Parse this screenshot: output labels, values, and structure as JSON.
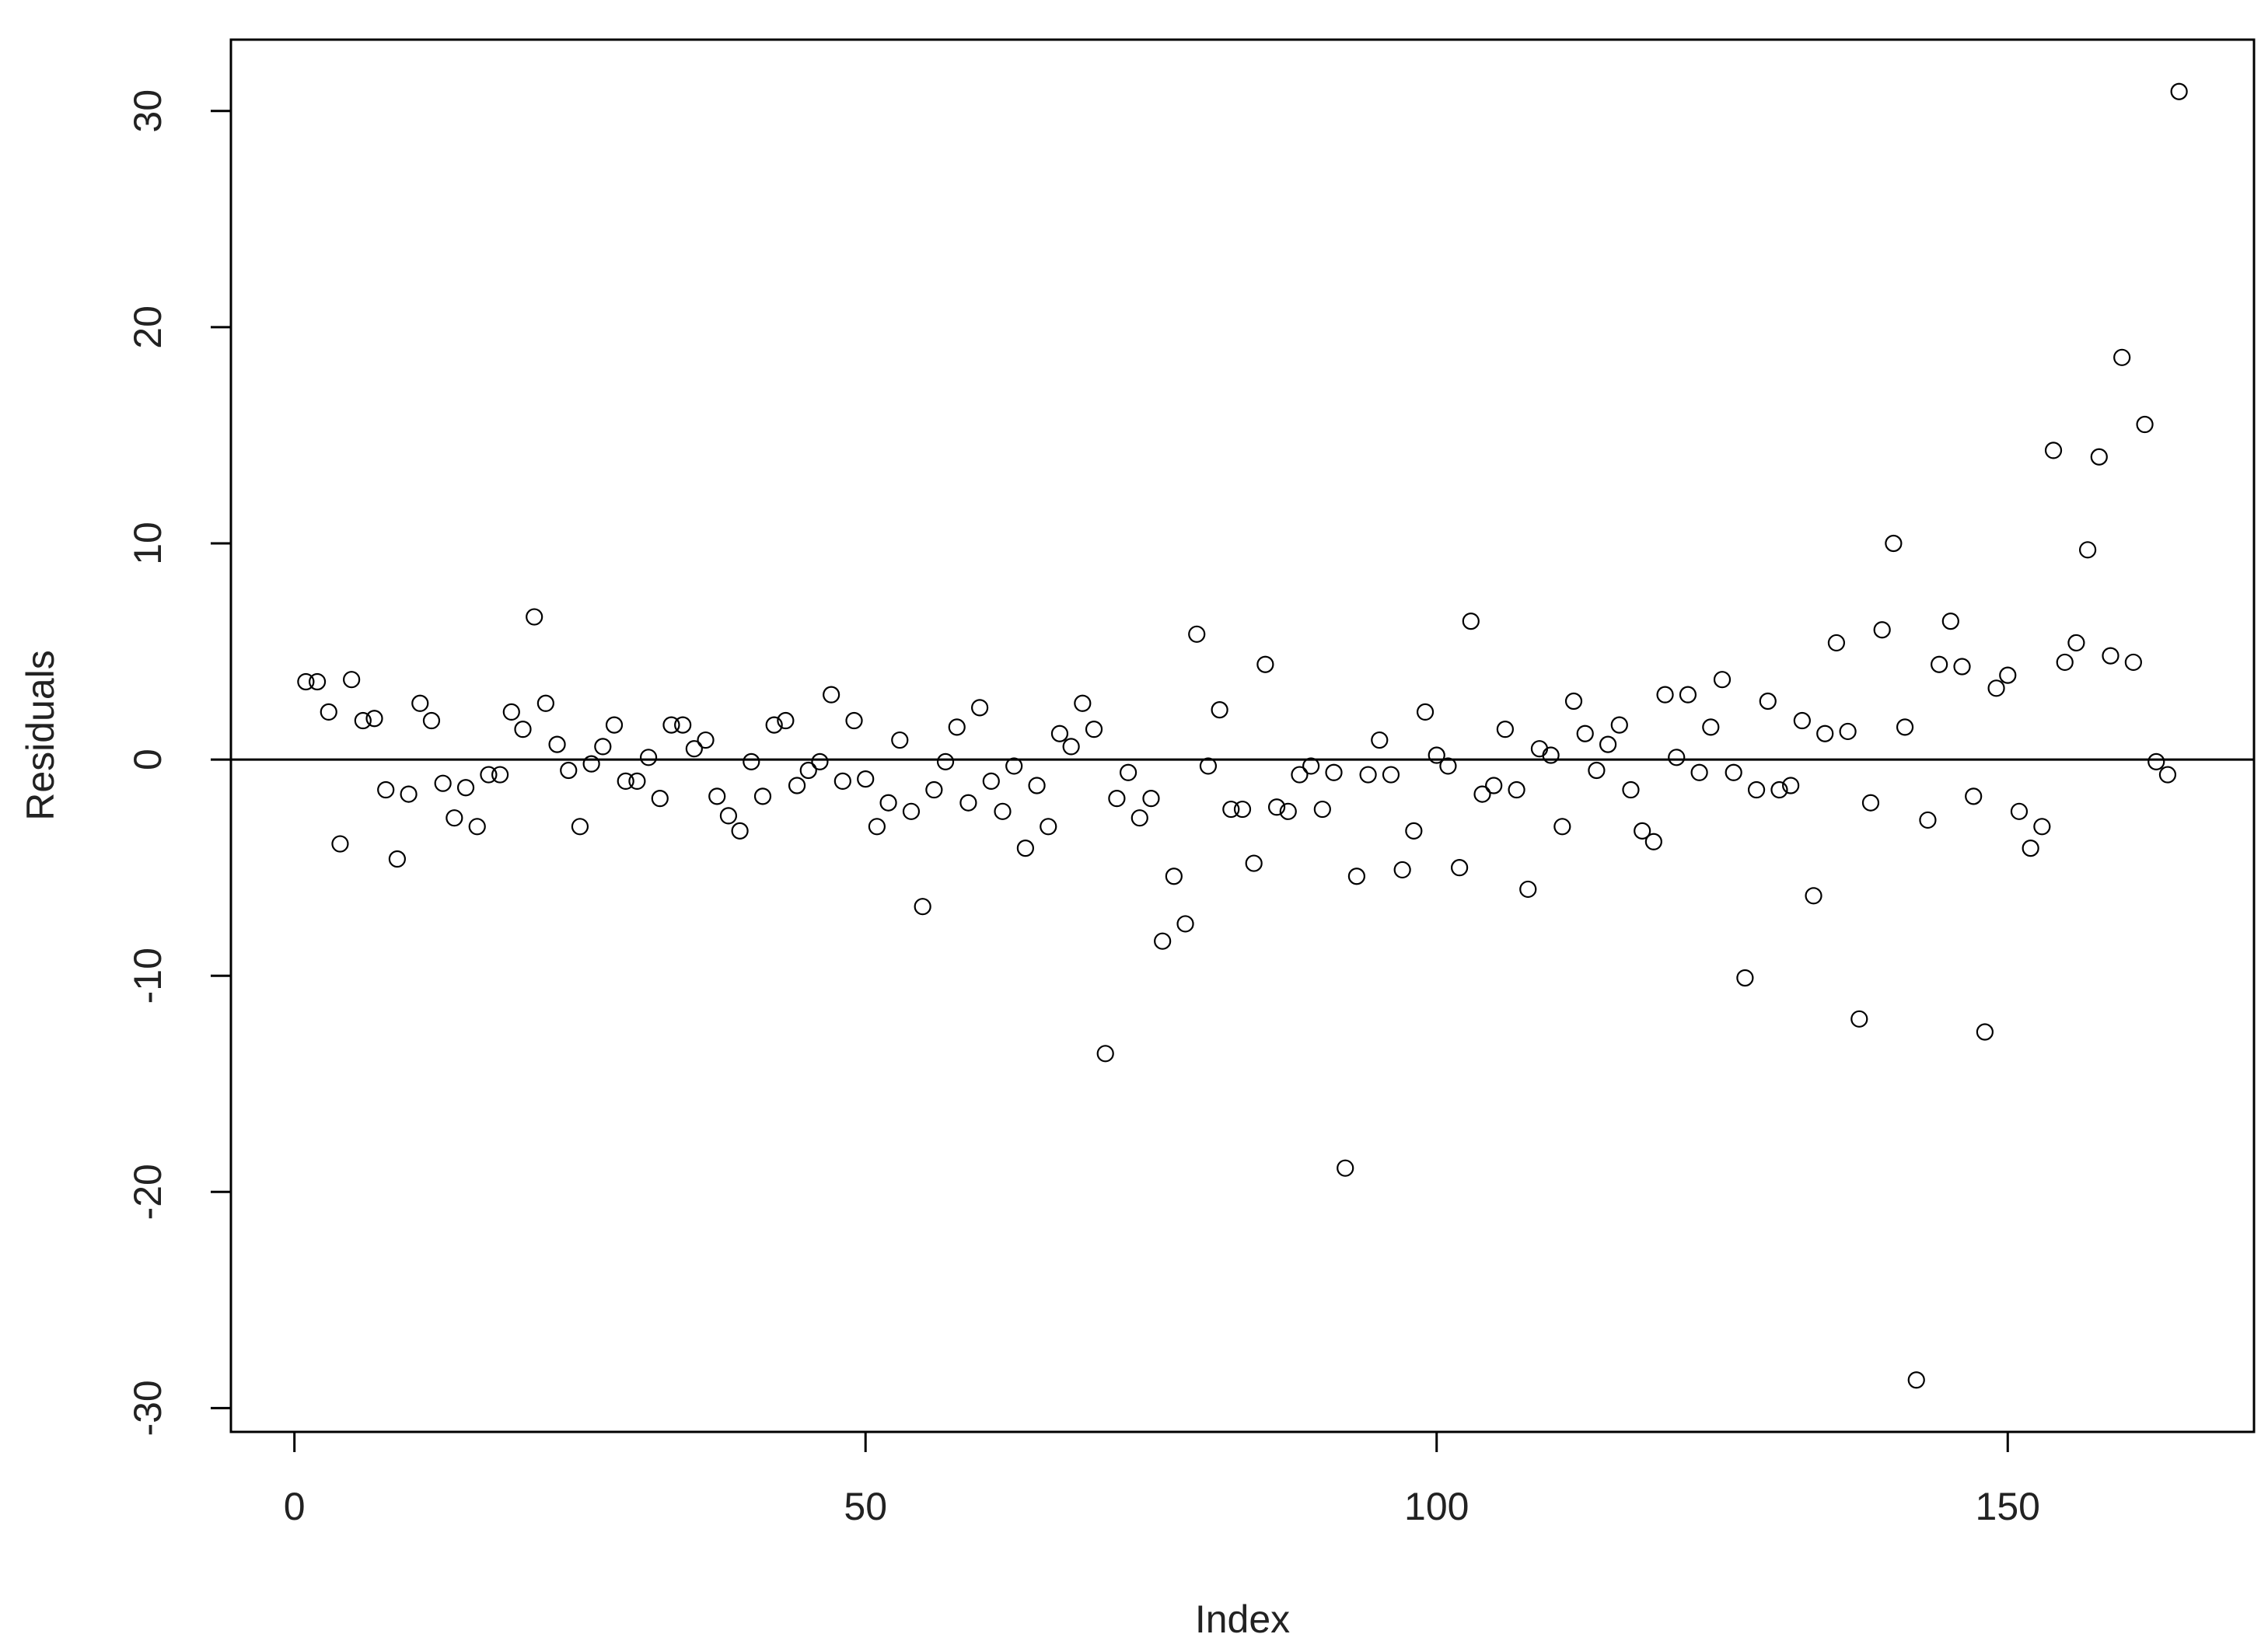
{
  "chart_data": {
    "type": "scatter",
    "xlabel": "Index",
    "ylabel": "Residuals",
    "x": [
      1,
      2,
      3,
      4,
      5,
      6,
      7,
      8,
      9,
      10,
      11,
      12,
      13,
      14,
      15,
      16,
      17,
      18,
      19,
      20,
      21,
      22,
      23,
      24,
      25,
      26,
      27,
      28,
      29,
      30,
      31,
      32,
      33,
      34,
      35,
      36,
      37,
      38,
      39,
      40,
      41,
      42,
      43,
      44,
      45,
      46,
      47,
      48,
      49,
      50,
      51,
      52,
      53,
      54,
      55,
      56,
      57,
      58,
      59,
      60,
      61,
      62,
      63,
      64,
      65,
      66,
      67,
      68,
      69,
      70,
      71,
      72,
      73,
      74,
      75,
      76,
      77,
      78,
      79,
      80,
      81,
      82,
      83,
      84,
      85,
      86,
      87,
      88,
      89,
      90,
      91,
      92,
      93,
      94,
      95,
      96,
      97,
      98,
      99,
      100,
      101,
      102,
      103,
      104,
      105,
      106,
      107,
      108,
      109,
      110,
      111,
      112,
      113,
      114,
      115,
      116,
      117,
      118,
      119,
      120,
      121,
      122,
      123,
      124,
      125,
      126,
      127,
      128,
      129,
      130,
      131,
      132,
      133,
      134,
      135,
      136,
      137,
      138,
      139,
      140,
      141,
      142,
      143,
      144,
      145,
      146,
      147,
      148,
      149,
      150,
      151,
      152,
      153,
      154,
      155,
      156,
      157,
      158,
      159,
      160,
      161,
      162,
      163,
      164,
      165
    ],
    "values": [
      3.6,
      3.6,
      2.2,
      -3.9,
      3.7,
      1.8,
      1.9,
      -1.4,
      -4.6,
      -1.6,
      2.6,
      1.8,
      -1.1,
      -2.7,
      -1.3,
      -3.1,
      -0.7,
      -0.7,
      2.2,
      1.4,
      6.6,
      2.6,
      0.7,
      -0.5,
      -3.1,
      -0.2,
      0.6,
      1.6,
      -1.0,
      -1.0,
      0.1,
      -1.8,
      1.6,
      1.6,
      0.5,
      0.9,
      -1.7,
      -2.6,
      -3.3,
      -0.1,
      -1.7,
      1.6,
      1.8,
      -1.2,
      -0.5,
      -0.1,
      3.0,
      -1.0,
      1.8,
      -0.9,
      -3.1,
      -2.0,
      0.9,
      -2.4,
      -6.8,
      -1.4,
      -0.1,
      1.5,
      -2.0,
      2.4,
      -1.0,
      -2.4,
      -0.3,
      -4.1,
      -1.2,
      -3.1,
      1.2,
      0.6,
      2.6,
      1.4,
      -13.6,
      -1.8,
      -0.6,
      -2.7,
      -1.8,
      -8.4,
      -5.4,
      -7.6,
      5.8,
      -0.3,
      2.3,
      -2.3,
      -2.3,
      -4.8,
      4.4,
      -2.2,
      -2.4,
      -0.7,
      -0.3,
      -2.3,
      -0.6,
      -18.9,
      -5.4,
      -0.7,
      0.9,
      -0.7,
      -5.1,
      -3.3,
      2.2,
      0.2,
      -0.3,
      -5.0,
      6.4,
      -1.6,
      -1.2,
      1.4,
      -1.4,
      -6.0,
      0.5,
      0.2,
      -3.1,
      2.7,
      1.2,
      -0.5,
      0.7,
      1.6,
      -1.4,
      -3.3,
      -3.8,
      3.0,
      0.1,
      3.0,
      -0.6,
      1.5,
      3.7,
      -0.6,
      -10.1,
      -1.4,
      2.7,
      -1.4,
      -1.2,
      1.8,
      -6.3,
      1.2,
      5.4,
      1.3,
      -12.0,
      -2.0,
      6.0,
      10.0,
      1.5,
      -28.7,
      -2.8,
      4.4,
      6.4,
      4.3,
      -1.7,
      -12.6,
      3.3,
      3.9,
      -2.4,
      -4.1,
      -3.1,
      14.3,
      4.5,
      5.4,
      9.7,
      14.0,
      4.8,
      18.6,
      4.5,
      15.5,
      -0.1,
      -0.7,
      30.9
    ],
    "color": "#000000",
    "hline": 0,
    "xlim": [
      -5.56,
      171.56
    ],
    "ylim": [
      -31.1,
      33.3
    ],
    "xticks": [
      0,
      50,
      100,
      150
    ],
    "yticks": [
      -30,
      -20,
      -10,
      0,
      10,
      20,
      30
    ]
  }
}
